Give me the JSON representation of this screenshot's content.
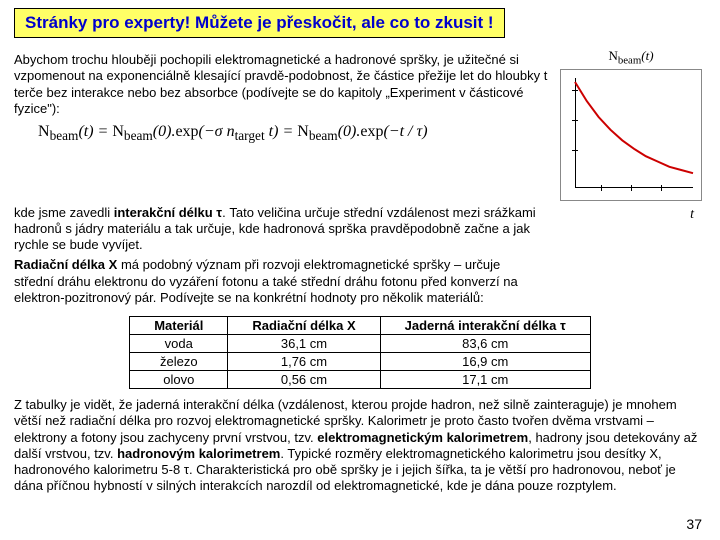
{
  "title": "Stránky pro experty! Můžete je přeskočit, ale co to zkusit !",
  "para1": "Abychom trochu hlouběji pochopili elektromagnetické a hadronové spršky, je užitečné si vzpomenout na exponenciálně klesající pravdě-podobnost, že částice přežije let do hloubky t terče bez interakce nebo bez absorbce (podívejte se do kapitoly „Experiment v částicové fyzice\"):",
  "formula": "N_beam(t) = N_beam(0).exp(−σ n_target t) = N_beam(0).exp(−t / τ)",
  "para2a": "kde jsme zavedli ",
  "para2b": "interakční délku τ",
  "para2c": ". Tato veličina určuje střední vzdálenost mezi srážkami hadronů s jádry materiálu a tak určuje, kde hadronová sprška pravděpodobně začne a jak rychle se bude vyvíjet.",
  "para3a": "Radiační délka X",
  "para3b": " má podobný význam při rozvoji elektromagnetické spršky – určuje střední dráhu elektronu do vyzáření fotonu a také střední dráhu fotonu před konverzí na elektron-pozitronový pár. Podívejte se na konkrétní hodnoty pro několik materiálů:",
  "table": {
    "headers": [
      "Materiál",
      "Radiační délka X",
      "Jaderná interakční délka τ"
    ],
    "rows": [
      [
        "voda",
        "36,1 cm",
        "83,6 cm"
      ],
      [
        "železo",
        "1,76 cm",
        "16,9 cm"
      ],
      [
        "olovo",
        "0,56 cm",
        "17,1 cm"
      ]
    ]
  },
  "para4": "Z tabulky je vidět, že jaderná interakční délka (vzdálenost, kterou projde hadron, než silně zainteraguje) je mnohem větší než radiační délka pro rozvoj elektromagnetické spršky. Kalorimetr je proto často tvořen dvěma vrstvami – elektrony a fotony jsou zachyceny první vrstvou, tzv. ",
  "para4b": "elektromagnetickým kalorimetrem",
  "para4c": ", hadrony jsou detekovány až další vrstvou, tzv. ",
  "para4d": "hadronovým kalorimetrem",
  "para4e": ". Typické rozměry elektromagnetického kalorimetru jsou desítky X, hadronového kalorimetru 5-8 τ. Charakteristická pro obě spršky je i jejich šířka, ta je větší pro hadronovou, neboť je dána příčnou hybností v silných interakcích narozdíl od elektromagnetické, kde je dána pouze rozptylem.",
  "chart": {
    "ylabel": "N_beam(t)",
    "xlabel": "t",
    "curve_color": "#cc0000",
    "axis_color": "#000000",
    "points": [
      [
        0,
        1
      ],
      [
        0.1,
        0.82
      ],
      [
        0.2,
        0.67
      ],
      [
        0.3,
        0.55
      ],
      [
        0.4,
        0.45
      ],
      [
        0.5,
        0.37
      ],
      [
        0.6,
        0.3
      ],
      [
        0.7,
        0.25
      ],
      [
        0.8,
        0.2
      ],
      [
        0.9,
        0.17
      ],
      [
        1.0,
        0.14
      ]
    ]
  },
  "pagenum": "37"
}
